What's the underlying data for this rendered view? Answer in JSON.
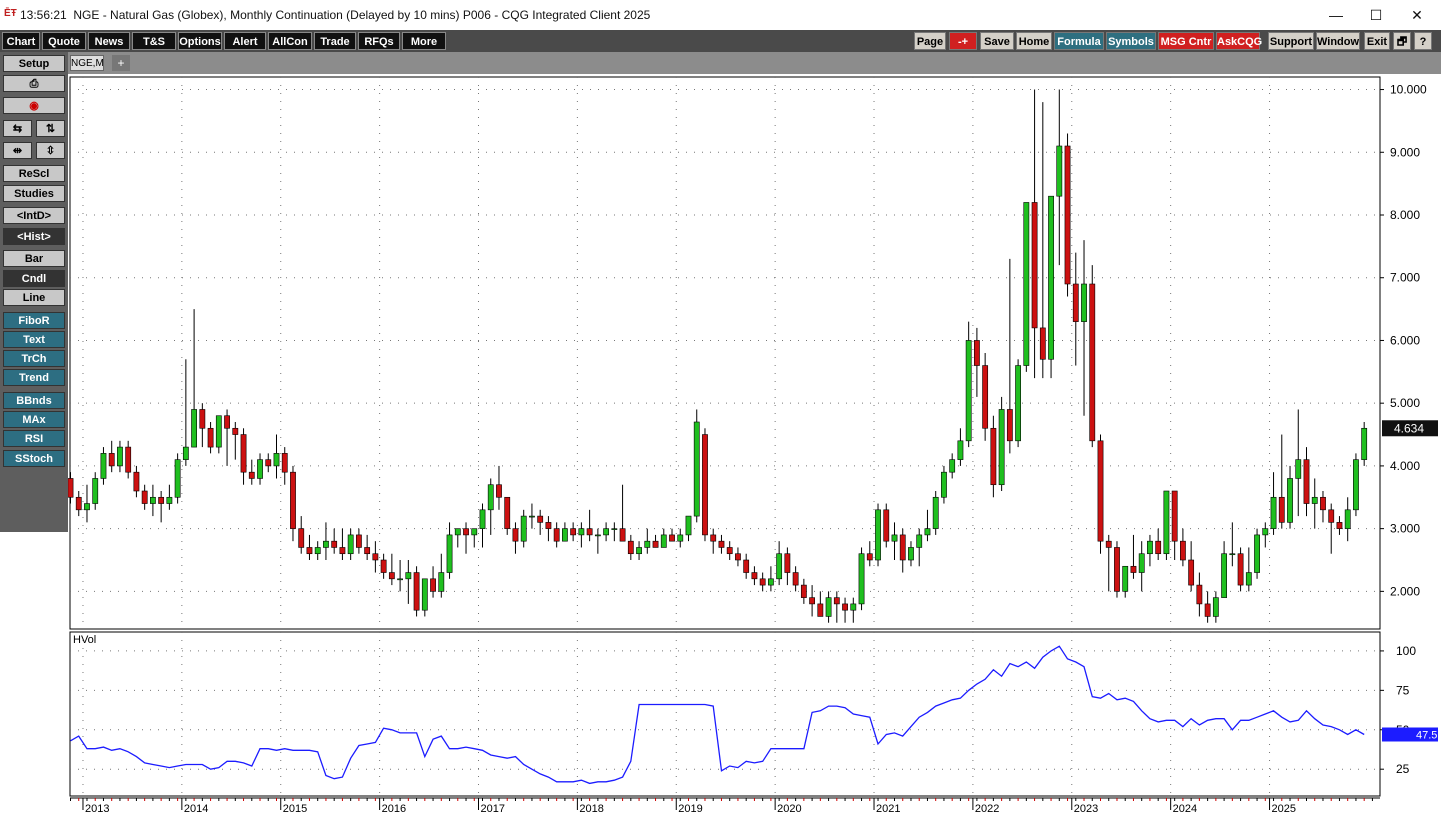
{
  "titlebar": {
    "time": "13:56:21",
    "title": "NGE - Natural Gas (Globex), Monthly Continuation (Delayed by 10 mins)   P006 - CQG Integrated Client 2025",
    "controls": [
      "—",
      "☐",
      "✕"
    ]
  },
  "menu": {
    "left": [
      "Chart",
      "Quote",
      "News",
      "T&S",
      "Options",
      "Alert",
      "AllCon",
      "Trade",
      "RFQs",
      "More"
    ],
    "right": [
      "Page",
      "-+",
      "Save",
      "Home",
      "Formula",
      "Symbols",
      "MSG Cntr",
      "AskCQG",
      "Support",
      "Window",
      "Exit",
      "🗗",
      "?"
    ]
  },
  "tab": {
    "label": "NGE,M",
    "add": "+"
  },
  "sidebar": {
    "setup": "Setup",
    "rescl": "ReScl",
    "studies": "Studies",
    "intd": "<IntD>",
    "hist": "<Hist>",
    "bar": "Bar",
    "cndl": "Cndl",
    "line": "Line",
    "fibor": "FiboR",
    "text": "Text",
    "trch": "TrCh",
    "trend": "Trend",
    "bbnds": "BBnds",
    "max": "MAx",
    "rsi": "RSI",
    "sstoch": "SStoch"
  },
  "colors": {
    "up": "#1fbf1f",
    "down": "#cc1111",
    "hvol": "#1c1cff",
    "grid": "#777777",
    "last_bg": "#111111",
    "hvol_last_bg": "#1c1cff"
  },
  "chart_data": [
    {
      "type": "candlestick",
      "symbol": "NGE,M",
      "title": "",
      "xlabel": "",
      "ylabel": "",
      "x_years": [
        "2013",
        "2014",
        "2015",
        "2016",
        "2017",
        "2018",
        "2019",
        "2020",
        "2021",
        "2022",
        "2023",
        "2024",
        "2025"
      ],
      "y_ticks": [
        "10.000",
        "9.000",
        "8.000",
        "7.000",
        "6.000",
        "5.000",
        "4.000",
        "3.000",
        "2.000"
      ],
      "ylim": [
        1.4,
        10.2
      ],
      "last_value": "4.634",
      "grid": true,
      "ohlc_monthly_from_2012_11": [
        [
          3.8,
          3.9,
          3.4,
          3.5
        ],
        [
          3.5,
          3.6,
          3.2,
          3.3
        ],
        [
          3.3,
          3.7,
          3.1,
          3.4
        ],
        [
          3.4,
          3.9,
          3.3,
          3.8
        ],
        [
          3.8,
          4.3,
          3.7,
          4.2
        ],
        [
          4.2,
          4.4,
          3.9,
          4.0
        ],
        [
          4.0,
          4.4,
          3.9,
          4.3
        ],
        [
          4.3,
          4.4,
          3.8,
          3.9
        ],
        [
          3.9,
          4.0,
          3.5,
          3.6
        ],
        [
          3.6,
          3.7,
          3.3,
          3.4
        ],
        [
          3.4,
          3.7,
          3.2,
          3.5
        ],
        [
          3.5,
          3.6,
          3.1,
          3.4
        ],
        [
          3.4,
          3.7,
          3.3,
          3.5
        ],
        [
          3.5,
          4.2,
          3.4,
          4.1
        ],
        [
          4.1,
          5.7,
          4.0,
          4.3
        ],
        [
          4.3,
          6.5,
          4.3,
          4.9
        ],
        [
          4.9,
          5.0,
          4.3,
          4.6
        ],
        [
          4.6,
          4.7,
          4.2,
          4.3
        ],
        [
          4.3,
          4.8,
          4.2,
          4.8
        ],
        [
          4.8,
          4.9,
          4.0,
          4.6
        ],
        [
          4.6,
          4.7,
          4.1,
          4.5
        ],
        [
          4.5,
          4.6,
          3.7,
          3.9
        ],
        [
          3.9,
          4.1,
          3.7,
          3.8
        ],
        [
          3.8,
          4.2,
          3.7,
          4.1
        ],
        [
          4.1,
          4.2,
          3.9,
          4.0
        ],
        [
          4.0,
          4.5,
          3.8,
          4.2
        ],
        [
          4.2,
          4.3,
          3.7,
          3.9
        ],
        [
          3.9,
          4.0,
          2.8,
          3.0
        ],
        [
          3.0,
          3.2,
          2.6,
          2.7
        ],
        [
          2.7,
          2.9,
          2.5,
          2.6
        ],
        [
          2.6,
          2.8,
          2.5,
          2.7
        ],
        [
          2.7,
          3.1,
          2.5,
          2.8
        ],
        [
          2.8,
          3.0,
          2.6,
          2.7
        ],
        [
          2.7,
          3.0,
          2.5,
          2.6
        ],
        [
          2.6,
          3.0,
          2.5,
          2.9
        ],
        [
          2.9,
          3.0,
          2.6,
          2.7
        ],
        [
          2.7,
          2.9,
          2.5,
          2.6
        ],
        [
          2.6,
          2.8,
          2.3,
          2.5
        ],
        [
          2.5,
          2.6,
          2.2,
          2.3
        ],
        [
          2.3,
          2.6,
          2.1,
          2.2
        ],
        [
          2.2,
          2.5,
          2.0,
          2.2
        ],
        [
          2.2,
          2.5,
          1.8,
          2.3
        ],
        [
          2.3,
          2.4,
          1.6,
          1.7
        ],
        [
          1.7,
          2.2,
          1.6,
          2.2
        ],
        [
          2.2,
          2.4,
          1.9,
          2.0
        ],
        [
          2.0,
          2.6,
          1.9,
          2.3
        ],
        [
          2.3,
          3.1,
          2.2,
          2.9
        ],
        [
          2.9,
          3.0,
          2.7,
          3.0
        ],
        [
          3.0,
          3.1,
          2.6,
          2.9
        ],
        [
          2.9,
          3.0,
          2.7,
          3.0
        ],
        [
          3.0,
          3.4,
          2.7,
          3.3
        ],
        [
          3.3,
          3.8,
          2.9,
          3.7
        ],
        [
          3.7,
          4.0,
          3.3,
          3.5
        ],
        [
          3.5,
          3.5,
          2.9,
          3.0
        ],
        [
          3.0,
          3.1,
          2.6,
          2.8
        ],
        [
          2.8,
          3.3,
          2.7,
          3.2
        ],
        [
          3.2,
          3.4,
          3.0,
          3.2
        ],
        [
          3.2,
          3.3,
          2.9,
          3.1
        ],
        [
          3.1,
          3.2,
          2.8,
          3.0
        ],
        [
          3.0,
          3.1,
          2.7,
          2.8
        ],
        [
          2.8,
          3.1,
          2.8,
          3.0
        ],
        [
          3.0,
          3.1,
          2.8,
          2.9
        ],
        [
          2.9,
          3.1,
          2.7,
          3.0
        ],
        [
          3.0,
          3.3,
          2.8,
          2.9
        ],
        [
          2.9,
          3.0,
          2.6,
          2.9
        ],
        [
          2.9,
          3.1,
          2.8,
          3.0
        ],
        [
          3.0,
          3.1,
          2.8,
          3.0
        ],
        [
          3.0,
          3.7,
          2.9,
          2.8
        ],
        [
          2.8,
          2.9,
          2.5,
          2.6
        ],
        [
          2.6,
          2.8,
          2.5,
          2.7
        ],
        [
          2.7,
          3.0,
          2.6,
          2.8
        ],
        [
          2.8,
          2.9,
          2.7,
          2.7
        ],
        [
          2.7,
          3.0,
          2.7,
          2.9
        ],
        [
          2.9,
          3.0,
          2.8,
          2.8
        ],
        [
          2.8,
          3.0,
          2.7,
          2.9
        ],
        [
          2.9,
          3.2,
          2.8,
          3.2
        ],
        [
          3.2,
          4.9,
          3.1,
          4.7
        ],
        [
          4.5,
          4.6,
          2.8,
          2.9
        ],
        [
          2.9,
          3.0,
          2.6,
          2.8
        ],
        [
          2.8,
          2.9,
          2.6,
          2.7
        ],
        [
          2.7,
          2.8,
          2.5,
          2.6
        ],
        [
          2.6,
          2.7,
          2.4,
          2.5
        ],
        [
          2.5,
          2.6,
          2.2,
          2.3
        ],
        [
          2.3,
          2.4,
          2.1,
          2.2
        ],
        [
          2.2,
          2.3,
          2.0,
          2.1
        ],
        [
          2.1,
          2.4,
          2.0,
          2.2
        ],
        [
          2.2,
          2.8,
          2.1,
          2.6
        ],
        [
          2.6,
          2.7,
          2.1,
          2.3
        ],
        [
          2.3,
          2.4,
          2.0,
          2.1
        ],
        [
          2.1,
          2.2,
          1.8,
          1.9
        ],
        [
          1.9,
          2.1,
          1.6,
          1.8
        ],
        [
          1.8,
          2.0,
          1.6,
          1.6
        ],
        [
          1.6,
          2.0,
          1.5,
          1.9
        ],
        [
          1.9,
          2.0,
          1.5,
          1.8
        ],
        [
          1.8,
          1.9,
          1.5,
          1.7
        ],
        [
          1.7,
          1.9,
          1.5,
          1.8
        ],
        [
          1.8,
          2.7,
          1.7,
          2.6
        ],
        [
          2.6,
          2.8,
          2.4,
          2.5
        ],
        [
          2.5,
          3.4,
          2.4,
          3.3
        ],
        [
          3.3,
          3.4,
          2.7,
          2.8
        ],
        [
          2.8,
          3.1,
          2.5,
          2.9
        ],
        [
          2.9,
          3.0,
          2.3,
          2.5
        ],
        [
          2.5,
          2.8,
          2.4,
          2.7
        ],
        [
          2.7,
          3.0,
          2.4,
          2.9
        ],
        [
          2.9,
          3.3,
          2.8,
          3.0
        ],
        [
          3.0,
          3.6,
          2.9,
          3.5
        ],
        [
          3.5,
          4.0,
          3.4,
          3.9
        ],
        [
          3.9,
          4.2,
          3.8,
          4.1
        ],
        [
          4.1,
          4.6,
          4.0,
          4.4
        ],
        [
          4.4,
          6.3,
          4.3,
          6.0
        ],
        [
          6.0,
          6.2,
          5.1,
          5.6
        ],
        [
          5.6,
          5.8,
          4.4,
          4.6
        ],
        [
          4.6,
          4.8,
          3.5,
          3.7
        ],
        [
          3.7,
          5.1,
          3.6,
          4.9
        ],
        [
          4.9,
          7.3,
          4.2,
          4.4
        ],
        [
          4.4,
          5.7,
          4.3,
          5.6
        ],
        [
          5.6,
          8.0,
          5.5,
          8.2
        ],
        [
          8.2,
          10.0,
          5.4,
          6.2
        ],
        [
          6.2,
          9.8,
          5.4,
          5.7
        ],
        [
          5.7,
          8.3,
          5.4,
          8.3
        ],
        [
          8.3,
          10.0,
          7.2,
          9.1
        ],
        [
          9.1,
          9.3,
          6.7,
          6.9
        ],
        [
          6.9,
          7.4,
          5.6,
          6.3
        ],
        [
          6.3,
          7.6,
          4.8,
          6.9
        ],
        [
          6.9,
          7.2,
          4.3,
          4.4
        ],
        [
          4.4,
          4.5,
          2.6,
          2.8
        ],
        [
          2.8,
          2.9,
          2.0,
          2.7
        ],
        [
          2.7,
          2.8,
          1.9,
          2.0
        ],
        [
          2.0,
          2.4,
          1.9,
          2.4
        ],
        [
          2.4,
          2.9,
          2.2,
          2.3
        ],
        [
          2.3,
          2.8,
          2.0,
          2.6
        ],
        [
          2.6,
          2.9,
          2.4,
          2.8
        ],
        [
          2.8,
          3.0,
          2.5,
          2.6
        ],
        [
          2.6,
          3.6,
          2.5,
          3.6
        ],
        [
          3.6,
          3.6,
          2.5,
          2.8
        ],
        [
          2.8,
          3.0,
          2.4,
          2.5
        ],
        [
          2.5,
          2.8,
          2.0,
          2.1
        ],
        [
          2.1,
          2.3,
          1.6,
          1.8
        ],
        [
          1.8,
          2.0,
          1.5,
          1.6
        ],
        [
          1.6,
          2.0,
          1.5,
          1.9
        ],
        [
          1.9,
          2.8,
          1.9,
          2.6
        ],
        [
          2.6,
          3.1,
          2.4,
          2.6
        ],
        [
          2.6,
          2.7,
          2.0,
          2.1
        ],
        [
          2.1,
          2.7,
          2.0,
          2.3
        ],
        [
          2.3,
          3.0,
          2.2,
          2.9
        ],
        [
          2.9,
          3.1,
          2.7,
          3.0
        ],
        [
          3.0,
          3.9,
          2.9,
          3.5
        ],
        [
          3.5,
          4.5,
          3.0,
          3.1
        ],
        [
          3.1,
          4.0,
          3.0,
          3.8
        ],
        [
          3.8,
          4.9,
          3.2,
          4.1
        ],
        [
          4.1,
          4.3,
          3.2,
          3.4
        ],
        [
          3.4,
          3.8,
          3.0,
          3.5
        ],
        [
          3.5,
          3.6,
          3.1,
          3.3
        ],
        [
          3.3,
          3.4,
          2.6,
          3.1
        ],
        [
          3.1,
          3.2,
          2.9,
          3.0
        ],
        [
          3.0,
          3.5,
          2.8,
          3.3
        ],
        [
          3.3,
          4.2,
          3.2,
          4.1
        ],
        [
          4.1,
          4.7,
          4.0,
          4.6
        ]
      ]
    },
    {
      "type": "line",
      "title": "HVol",
      "y_ticks": [
        "100",
        "75",
        "50",
        "25"
      ],
      "ylim": [
        8,
        112
      ],
      "last_value": "47.5",
      "grid": true,
      "values": [
        43,
        46,
        38,
        38,
        39,
        37,
        38,
        36,
        33,
        29,
        28,
        27,
        26,
        27,
        28,
        28,
        28,
        25,
        26,
        30,
        30,
        29,
        27,
        38,
        38,
        37,
        38,
        37,
        37,
        37,
        36,
        21,
        19,
        20,
        32,
        40,
        41,
        42,
        51,
        50,
        48,
        48,
        48,
        33,
        44,
        46,
        38,
        38,
        39,
        38,
        37,
        34,
        33,
        32,
        33,
        28,
        25,
        22,
        20,
        17,
        17,
        17,
        18,
        16,
        17,
        17,
        18,
        20,
        30,
        66,
        66,
        66,
        66,
        66,
        66,
        66,
        66,
        66,
        65,
        24,
        27,
        26,
        30,
        29,
        30,
        38,
        38,
        38,
        38,
        38,
        61,
        62,
        65,
        65,
        64,
        60,
        59,
        58,
        41,
        47,
        48,
        46,
        52,
        58,
        61,
        65,
        67,
        69,
        70,
        75,
        79,
        82,
        88,
        84,
        92,
        90,
        93,
        89,
        96,
        100,
        103,
        95,
        93,
        90,
        71,
        70,
        73,
        69,
        70,
        68,
        62,
        57,
        55,
        56,
        56,
        52,
        57,
        53,
        56,
        57,
        57,
        50,
        56,
        56,
        58,
        60,
        62,
        58,
        55,
        56,
        62,
        57,
        53,
        52,
        50,
        47,
        50,
        47
      ]
    }
  ]
}
